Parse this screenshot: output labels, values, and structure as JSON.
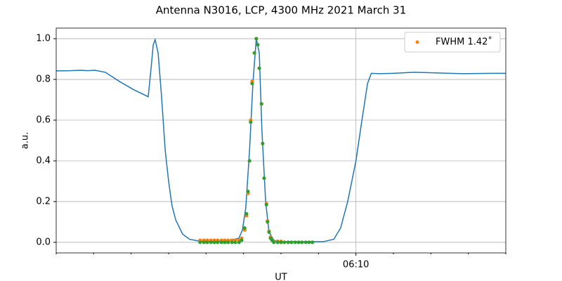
{
  "chart_data": {
    "type": "line",
    "title": "Antenna N3016, LCP, 4300 MHz 2021 March 31",
    "xlabel": "UT",
    "ylabel": "a.u.",
    "xlim": [
      2,
      14
    ],
    "ylim": [
      -0.052,
      1.052
    ],
    "xticks": [
      {
        "value": 10,
        "label": "06:10"
      }
    ],
    "xminorticks": [
      2,
      3,
      4,
      5,
      6,
      7,
      8,
      9,
      11,
      12,
      13,
      14
    ],
    "yticks": [
      {
        "value": 0,
        "label": "0.0"
      },
      0.2,
      0.4,
      0.6,
      0.8,
      {
        "value": 1,
        "label": "1.0"
      }
    ],
    "grid": true,
    "legend": "upper right",
    "series": [
      {
        "mode": "line",
        "color": "#1f77b4",
        "x": [
          2.0,
          2.375,
          2.656,
          2.844,
          3.031,
          3.3125,
          3.6875,
          4.0625,
          4.456,
          4.53,
          4.59,
          4.64,
          4.72,
          4.81,
          4.91,
          5.0,
          5.09,
          5.19,
          5.375,
          5.56,
          5.84,
          6.5,
          6.875,
          6.97,
          7.06,
          7.16,
          7.25,
          7.34,
          7.42,
          7.49,
          7.59,
          7.68,
          7.81,
          8.0,
          9.125,
          9.41,
          9.59,
          9.78,
          10.0,
          10.16,
          10.31,
          10.41,
          10.625,
          11.0,
          11.56,
          12.125,
          12.875,
          13.625,
          14.0
        ],
        "values": [
          0.842,
          0.843,
          0.845,
          0.843,
          0.845,
          0.835,
          0.79,
          0.75,
          0.715,
          0.85,
          0.97,
          0.995,
          0.93,
          0.72,
          0.45,
          0.3,
          0.18,
          0.11,
          0.04,
          0.015,
          0.005,
          0.005,
          0.02,
          0.06,
          0.17,
          0.45,
          0.78,
          1.0,
          0.93,
          0.55,
          0.2,
          0.05,
          0.01,
          0.003,
          0.003,
          0.015,
          0.07,
          0.2,
          0.4,
          0.6,
          0.78,
          0.83,
          0.828,
          0.83,
          0.835,
          0.832,
          0.828,
          0.83,
          0.83
        ]
      },
      {
        "mode": "markers",
        "name": "FWHM 1.42˚",
        "color": "#ff7f0e",
        "x": [
          5.84,
          5.94,
          6.03,
          6.13,
          6.22,
          6.31,
          6.41,
          6.5,
          6.59,
          6.69,
          6.78,
          6.88,
          6.95,
          7.03,
          7.08,
          7.12,
          7.16,
          7.19,
          7.23,
          7.29,
          7.34,
          7.38,
          7.42,
          7.48,
          7.51,
          7.55,
          7.61,
          7.64,
          7.68,
          7.72,
          7.76,
          7.81,
          7.91,
          8.0
        ],
        "values": [
          0.01,
          0.01,
          0.01,
          0.01,
          0.01,
          0.01,
          0.01,
          0.01,
          0.01,
          0.01,
          0.01,
          0.01,
          0.02,
          0.06,
          0.13,
          0.24,
          0.4,
          0.6,
          0.79,
          0.93,
          1.0,
          0.97,
          0.855,
          0.68,
          0.485,
          0.315,
          0.19,
          0.105,
          0.055,
          0.025,
          0.012,
          0.005,
          0.005,
          0.005
        ]
      },
      {
        "mode": "markers",
        "color": "#2ca02c",
        "x": [
          5.84,
          5.94,
          6.03,
          6.13,
          6.22,
          6.31,
          6.41,
          6.5,
          6.59,
          6.69,
          6.78,
          6.88,
          6.95,
          7.03,
          7.08,
          7.12,
          7.16,
          7.19,
          7.23,
          7.29,
          7.34,
          7.38,
          7.42,
          7.48,
          7.51,
          7.55,
          7.61,
          7.64,
          7.68,
          7.72,
          7.76,
          7.81,
          7.91,
          8.0,
          8.09,
          8.19,
          8.28,
          8.38,
          8.47,
          8.56,
          8.66,
          8.75,
          8.84
        ],
        "values": [
          0.0,
          0.0,
          0.0,
          0.0,
          0.0,
          0.0,
          0.0,
          0.0,
          0.0,
          0.0,
          0.0,
          0.0,
          0.01,
          0.07,
          0.14,
          0.25,
          0.4,
          0.59,
          0.78,
          0.93,
          1.0,
          0.97,
          0.855,
          0.68,
          0.485,
          0.315,
          0.185,
          0.1,
          0.05,
          0.02,
          0.01,
          0.0,
          0.0,
          0.0,
          0.0,
          0.0,
          0.0,
          0.0,
          0.0,
          0.0,
          0.0,
          0.0,
          0.0
        ]
      }
    ]
  }
}
